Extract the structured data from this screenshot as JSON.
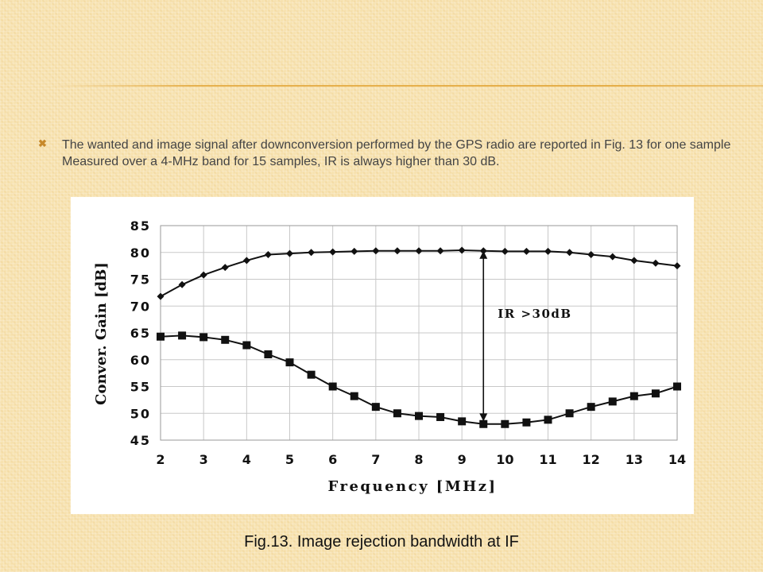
{
  "slide": {
    "bullet_text": "The wanted and image signal after downconversion performed by the GPS radio are reported in Fig. 13 for one sample Measured over a 4-MHz band for 15 samples, IR is always higher than 30 dB.",
    "bullet_icon": "x-mark-bullet-icon",
    "caption": "Fig.13. Image rejection bandwidth at IF",
    "accent_color": "#e3a83c"
  },
  "chart_data": {
    "type": "line",
    "title": "",
    "xlabel": "Frequency [MHz]",
    "ylabel": "Conver. Gain [dB]",
    "xlim": [
      2,
      14
    ],
    "ylim": [
      45,
      85
    ],
    "x_ticks": [
      "2",
      "3",
      "4",
      "5",
      "6",
      "7",
      "8",
      "9",
      "10",
      "11",
      "12",
      "13",
      "14"
    ],
    "y_ticks": [
      "45",
      "50",
      "55",
      "60",
      "65",
      "70",
      "75",
      "80",
      "85"
    ],
    "grid": true,
    "x": [
      2,
      2.5,
      3,
      3.5,
      4,
      4.5,
      5,
      5.5,
      6,
      6.5,
      7,
      7.5,
      8,
      8.5,
      9,
      9.5,
      10,
      10.5,
      11,
      11.5,
      12,
      12.5,
      13,
      13.5,
      14
    ],
    "series": [
      {
        "marker": "diamond",
        "values": [
          71.8,
          74,
          75.8,
          77.2,
          78.5,
          79.6,
          79.8,
          80,
          80.1,
          80.2,
          80.3,
          80.3,
          80.3,
          80.3,
          80.4,
          80.3,
          80.2,
          80.2,
          80.2,
          80,
          79.6,
          79.2,
          78.5,
          78,
          77.5
        ]
      },
      {
        "marker": "square",
        "values": [
          64.3,
          64.5,
          64.2,
          63.7,
          62.7,
          61,
          59.5,
          57.2,
          55,
          53.2,
          51.2,
          50,
          49.5,
          49.3,
          48.5,
          48,
          48,
          48.3,
          48.8,
          50,
          51.2,
          52.2,
          53.2,
          53.7,
          55
        ]
      }
    ],
    "annotation": {
      "text": "IR >30dB",
      "x": 9.5,
      "y_top": 80.3,
      "y_bottom": 48.5
    }
  }
}
